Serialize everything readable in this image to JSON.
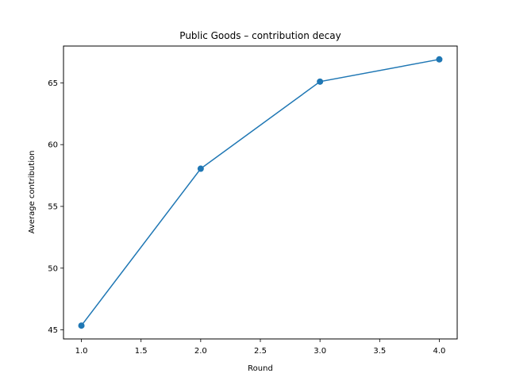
{
  "chart_data": {
    "type": "line",
    "title": "Public Goods – contribution decay",
    "xlabel": "Round",
    "ylabel": "Average contribution",
    "x": [
      1.0,
      2.0,
      3.0,
      4.0
    ],
    "series": [
      {
        "values": [
          45.35,
          58.05,
          65.1,
          66.9
        ]
      }
    ],
    "xlim": [
      0.85,
      4.15
    ],
    "ylim": [
      44.27,
      67.98
    ],
    "xticks": [
      "1.0",
      "1.5",
      "2.0",
      "2.5",
      "3.0",
      "3.5",
      "4.0"
    ],
    "yticks": [
      "45",
      "50",
      "55",
      "60",
      "65"
    ],
    "grid": false,
    "marker": "circle",
    "line_color": "#1f77b4"
  }
}
